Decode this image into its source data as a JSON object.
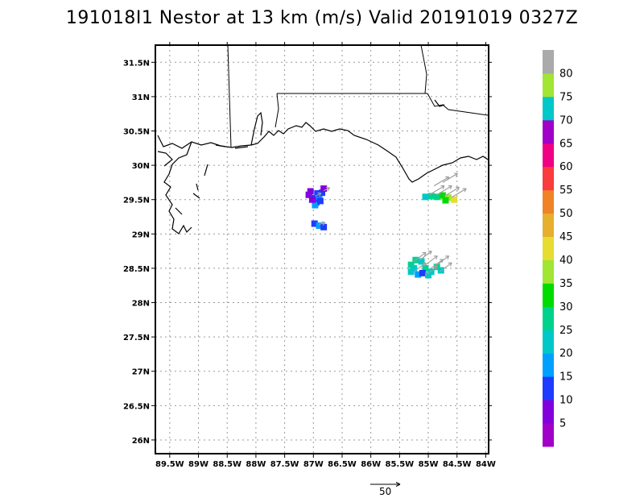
{
  "title": "191018I1 Nestor at 13 km (m/s) Valid 20191019 0327Z",
  "colors": {
    "grid": "#9a9a9a",
    "coast": "#000000",
    "arrow": "#a0a0a0"
  },
  "chart_data": {
    "type": "scatter",
    "title": "191018I1 Nestor at 13 km (m/s) Valid 20191019 0327Z",
    "xlabel": "",
    "ylabel": "",
    "xlim": [
      -89.75,
      -83.95
    ],
    "ylim": [
      25.8,
      31.75
    ],
    "grid": true,
    "x_ticks": [
      -89.5,
      -89,
      -88.5,
      -88,
      -87.5,
      -87,
      -86.5,
      -86,
      -85.5,
      -85,
      -84.5,
      -84
    ],
    "x_tick_labels": [
      "89.5W",
      "89W",
      "88.5W",
      "88W",
      "87.5W",
      "87W",
      "86.5W",
      "86W",
      "85.5W",
      "85W",
      "84.5W",
      "84W"
    ],
    "y_ticks": [
      26,
      26.5,
      27,
      27.5,
      28,
      28.5,
      29,
      29.5,
      30,
      30.5,
      31,
      31.5
    ],
    "y_tick_labels": [
      "26N",
      "26.5N",
      "27N",
      "27.5N",
      "28N",
      "28.5N",
      "29N",
      "29.5N",
      "30N",
      "30.5N",
      "31N",
      "31.5N"
    ],
    "colorbar": {
      "labels": [
        "5",
        "10",
        "15",
        "20",
        "25",
        "30",
        "35",
        "40",
        "45",
        "50",
        "55",
        "60",
        "65",
        "70",
        "75",
        "80"
      ],
      "colors": [
        "#a000c8",
        "#8200dc",
        "#1e3cff",
        "#00a0ff",
        "#00c8c8",
        "#00d28c",
        "#00dc00",
        "#a0e632",
        "#e6dc32",
        "#e6af2d",
        "#f08228",
        "#fa3c3c",
        "#f00082",
        "#a000c8",
        "#00c8c8",
        "#a0e632",
        "#aaaaaa"
      ]
    },
    "series": [
      {
        "points": [
          {
            "x": -87.05,
            "y": 29.62,
            "v": 5
          },
          {
            "x": -87.08,
            "y": 29.57,
            "v": 5
          },
          {
            "x": -87.0,
            "y": 29.52,
            "v": 10
          },
          {
            "x": -86.95,
            "y": 29.46,
            "v": 10
          },
          {
            "x": -86.9,
            "y": 29.55,
            "v": 15
          },
          {
            "x": -86.85,
            "y": 29.6,
            "v": 10
          },
          {
            "x": -86.82,
            "y": 29.66,
            "v": 5
          },
          {
            "x": -86.97,
            "y": 29.42,
            "v": 15
          },
          {
            "x": -86.88,
            "y": 29.48,
            "v": 10
          },
          {
            "x": -87.02,
            "y": 29.5,
            "v": 5
          },
          {
            "x": -86.93,
            "y": 29.59,
            "v": 10
          },
          {
            "x": -86.98,
            "y": 29.15,
            "v": 10
          },
          {
            "x": -86.9,
            "y": 29.12,
            "v": 15
          },
          {
            "x": -86.82,
            "y": 29.1,
            "v": 10
          },
          {
            "x": -84.85,
            "y": 29.54,
            "v": 25
          },
          {
            "x": -84.75,
            "y": 29.56,
            "v": 30
          },
          {
            "x": -84.65,
            "y": 29.53,
            "v": 35
          },
          {
            "x": -84.55,
            "y": 29.5,
            "v": 40
          },
          {
            "x": -84.95,
            "y": 29.55,
            "v": 25
          },
          {
            "x": -85.05,
            "y": 29.54,
            "v": 20
          },
          {
            "x": -84.7,
            "y": 29.49,
            "v": 30
          },
          {
            "x": -85.3,
            "y": 28.45,
            "v": 20
          },
          {
            "x": -85.3,
            "y": 28.55,
            "v": 25
          },
          {
            "x": -85.22,
            "y": 28.62,
            "v": 25
          },
          {
            "x": -85.12,
            "y": 28.6,
            "v": 20
          },
          {
            "x": -85.05,
            "y": 28.5,
            "v": 25
          },
          {
            "x": -84.95,
            "y": 28.45,
            "v": 20
          },
          {
            "x": -84.85,
            "y": 28.52,
            "v": 25
          },
          {
            "x": -84.78,
            "y": 28.47,
            "v": 20
          },
          {
            "x": -85.18,
            "y": 28.41,
            "v": 15
          },
          {
            "x": -85.1,
            "y": 28.43,
            "v": 10
          },
          {
            "x": -85.0,
            "y": 28.4,
            "v": 20
          },
          {
            "x": -85.25,
            "y": 28.5,
            "v": 20
          }
        ]
      }
    ],
    "wind_vectors": [
      {
        "x": -86.97,
        "y": 29.55,
        "u": 10,
        "v": 5
      },
      {
        "x": -86.82,
        "y": 29.63,
        "u": 10,
        "v": 5
      },
      {
        "x": -86.9,
        "y": 29.14,
        "u": 10,
        "v": 3
      },
      {
        "x": -84.98,
        "y": 29.57,
        "u": 25,
        "v": 15
      },
      {
        "x": -84.85,
        "y": 29.57,
        "u": 25,
        "v": 15
      },
      {
        "x": -84.72,
        "y": 29.55,
        "u": 25,
        "v": 15
      },
      {
        "x": -84.6,
        "y": 29.53,
        "u": 25,
        "v": 15
      },
      {
        "x": -84.9,
        "y": 29.7,
        "u": 25,
        "v": 15
      },
      {
        "x": -84.75,
        "y": 29.75,
        "u": 25,
        "v": 15
      },
      {
        "x": -85.25,
        "y": 28.6,
        "u": 20,
        "v": 15
      },
      {
        "x": -85.15,
        "y": 28.62,
        "u": 20,
        "v": 15
      },
      {
        "x": -85.05,
        "y": 28.55,
        "u": 20,
        "v": 15
      },
      {
        "x": -84.95,
        "y": 28.5,
        "u": 20,
        "v": 15
      },
      {
        "x": -84.85,
        "y": 28.55,
        "u": 20,
        "v": 15
      },
      {
        "x": -85.25,
        "y": 28.45,
        "u": 20,
        "v": 15
      },
      {
        "x": -85.05,
        "y": 28.4,
        "u": 20,
        "v": 15
      },
      {
        "x": -84.8,
        "y": 28.45,
        "u": 20,
        "v": 15
      }
    ],
    "reference_vector": {
      "label": "50",
      "magnitude": 50
    }
  }
}
